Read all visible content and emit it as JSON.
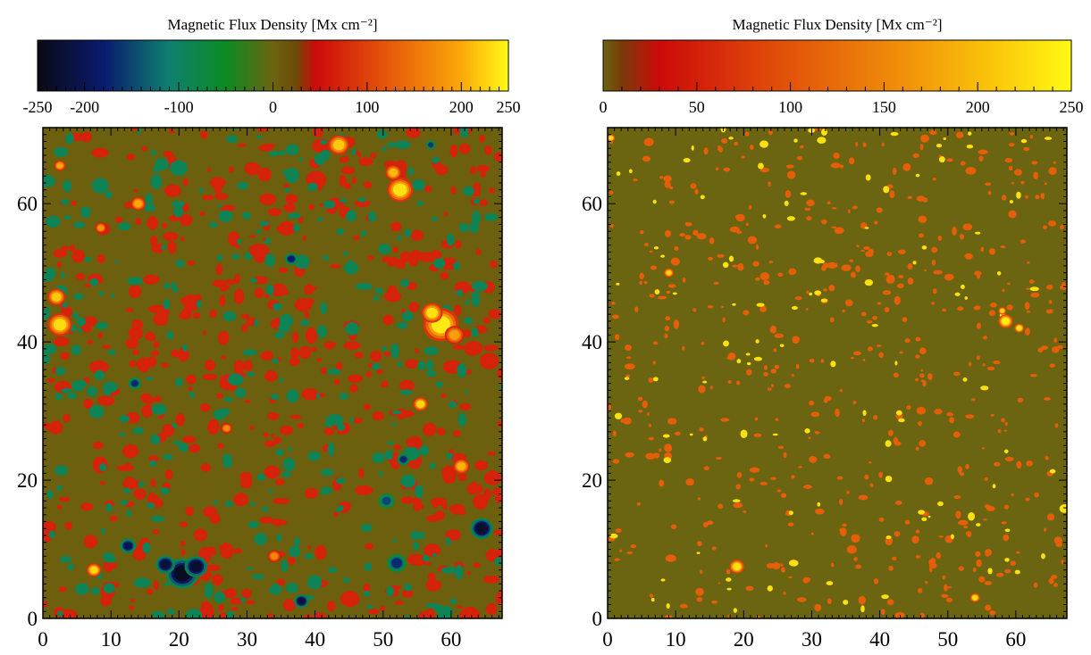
{
  "chart_data": [
    {
      "type": "heatmap",
      "title": "Magnetic Flux Density [Mx cm⁻²]",
      "colorbar": {
        "min": -250,
        "max": 250,
        "ticks": [
          -250,
          -200,
          -100,
          0,
          100,
          200,
          250
        ],
        "tick_labels": [
          "-250",
          "-200",
          "-100",
          "0",
          "100",
          "200",
          "250"
        ],
        "colors": [
          {
            "v": -250,
            "c": "#0a0a14"
          },
          {
            "v": -180,
            "c": "#0a1a6e"
          },
          {
            "v": -110,
            "c": "#0f8070"
          },
          {
            "v": -50,
            "c": "#0c8a22"
          },
          {
            "v": 0,
            "c": "#6b6410"
          },
          {
            "v": 25,
            "c": "#6e4a08"
          },
          {
            "v": 45,
            "c": "#cc0a0a"
          },
          {
            "v": 130,
            "c": "#e8600a"
          },
          {
            "v": 200,
            "c": "#fba80a"
          },
          {
            "v": 250,
            "c": "#fffa14"
          }
        ]
      },
      "xlim": [
        0,
        67.5
      ],
      "ylim": [
        0,
        71
      ],
      "xticks": [
        0,
        10,
        20,
        30,
        40,
        50,
        60
      ],
      "xtick_labels": [
        "0",
        "10",
        "20",
        "30",
        "40",
        "50",
        "60"
      ],
      "yticks": [
        0,
        20,
        40,
        60
      ],
      "ytick_labels": [
        "0",
        "20",
        "40",
        "60"
      ],
      "background_value": 5,
      "field": {
        "noise": [
          {
            "value": 70,
            "count": 520,
            "size_min": 0.35,
            "size_max": 1.1,
            "seed": 11
          },
          {
            "value": -90,
            "count": 320,
            "size_min": 0.35,
            "size_max": 1.0,
            "seed": 23
          }
        ],
        "features": [
          {
            "x": 58.5,
            "y": 42.5,
            "r": 2.2,
            "value": 240
          },
          {
            "x": 57.2,
            "y": 44.2,
            "r": 1.3,
            "value": 235
          },
          {
            "x": 60.5,
            "y": 41.0,
            "r": 1.2,
            "value": 190
          },
          {
            "x": 52.5,
            "y": 62.0,
            "r": 1.6,
            "value": 235
          },
          {
            "x": 51.5,
            "y": 64.5,
            "r": 1.0,
            "value": 210
          },
          {
            "x": 2.5,
            "y": 42.5,
            "r": 1.5,
            "value": 230
          },
          {
            "x": 2.0,
            "y": 46.5,
            "r": 1.1,
            "value": 220
          },
          {
            "x": 43.5,
            "y": 68.5,
            "r": 1.3,
            "value": 220
          },
          {
            "x": 55.5,
            "y": 31.0,
            "r": 0.9,
            "value": 230
          },
          {
            "x": 61.5,
            "y": 22.0,
            "r": 1.0,
            "value": 205
          },
          {
            "x": 7.5,
            "y": 7.0,
            "r": 0.9,
            "value": 230
          },
          {
            "x": 2.5,
            "y": 65.5,
            "r": 0.7,
            "value": 200
          },
          {
            "x": 14.0,
            "y": 60.0,
            "r": 0.9,
            "value": 200
          },
          {
            "x": 8.5,
            "y": 56.5,
            "r": 0.7,
            "value": 180
          },
          {
            "x": 27.0,
            "y": 27.5,
            "r": 0.7,
            "value": 170
          },
          {
            "x": 34.0,
            "y": 9.0,
            "r": 0.8,
            "value": 170
          },
          {
            "x": 20.5,
            "y": 6.5,
            "r": 2.0,
            "value": -240
          },
          {
            "x": 22.5,
            "y": 7.5,
            "r": 1.4,
            "value": -230
          },
          {
            "x": 18.0,
            "y": 7.8,
            "r": 1.2,
            "value": -220
          },
          {
            "x": 12.5,
            "y": 10.5,
            "r": 1.0,
            "value": -200
          },
          {
            "x": 64.5,
            "y": 13.0,
            "r": 1.4,
            "value": -230
          },
          {
            "x": 38.0,
            "y": 2.5,
            "r": 0.9,
            "value": -220
          },
          {
            "x": 52.0,
            "y": 8.0,
            "r": 1.2,
            "value": -170
          },
          {
            "x": 50.5,
            "y": 17.0,
            "r": 1.0,
            "value": -150
          },
          {
            "x": 13.5,
            "y": 34.0,
            "r": 0.8,
            "value": -170
          },
          {
            "x": 36.5,
            "y": 52.0,
            "r": 0.8,
            "value": -180
          },
          {
            "x": 57.0,
            "y": 68.5,
            "r": 0.6,
            "value": -160
          },
          {
            "x": 53.0,
            "y": 23.0,
            "r": 0.8,
            "value": -170
          }
        ]
      }
    },
    {
      "type": "heatmap",
      "title": "Magnetic Flux Density [Mx cm⁻²]",
      "colorbar": {
        "min": 0,
        "max": 250,
        "ticks": [
          0,
          50,
          100,
          150,
          200,
          250
        ],
        "tick_labels": [
          "0",
          "50",
          "100",
          "150",
          "200",
          "250"
        ],
        "colors": [
          {
            "v": 0,
            "c": "#6b6410"
          },
          {
            "v": 10,
            "c": "#7a3a0a"
          },
          {
            "v": 30,
            "c": "#cc0a0a"
          },
          {
            "v": 90,
            "c": "#e04a0a"
          },
          {
            "v": 160,
            "c": "#f0900a"
          },
          {
            "v": 210,
            "c": "#fbc80a"
          },
          {
            "v": 250,
            "c": "#fffa14"
          }
        ]
      },
      "xlim": [
        0,
        67.5
      ],
      "ylim": [
        0,
        71
      ],
      "xticks": [
        0,
        10,
        20,
        30,
        40,
        50,
        60
      ],
      "xtick_labels": [
        "0",
        "10",
        "20",
        "30",
        "40",
        "50",
        "60"
      ],
      "yticks": [
        0,
        20,
        40,
        60
      ],
      "ytick_labels": [
        "0",
        "20",
        "40",
        "60"
      ],
      "background_value": 0,
      "field": {
        "noise": [
          {
            "value": 110,
            "count": 520,
            "size_min": 0.25,
            "size_max": 0.6,
            "seed": 37
          },
          {
            "value": 230,
            "count": 120,
            "size_min": 0.25,
            "size_max": 0.55,
            "seed": 41
          }
        ],
        "features": [
          {
            "x": 58.5,
            "y": 43.0,
            "r": 0.9,
            "value": 240
          },
          {
            "x": 60.5,
            "y": 42.0,
            "r": 0.6,
            "value": 235
          },
          {
            "x": 58.0,
            "y": 44.5,
            "r": 0.5,
            "value": 220
          },
          {
            "x": 19.0,
            "y": 7.5,
            "r": 0.9,
            "value": 230
          },
          {
            "x": 54.0,
            "y": 3.0,
            "r": 0.6,
            "value": 230
          },
          {
            "x": 9.0,
            "y": 50.0,
            "r": 0.6,
            "value": 220
          },
          {
            "x": 0.5,
            "y": 69.5,
            "r": 0.5,
            "value": 230
          }
        ]
      }
    }
  ]
}
